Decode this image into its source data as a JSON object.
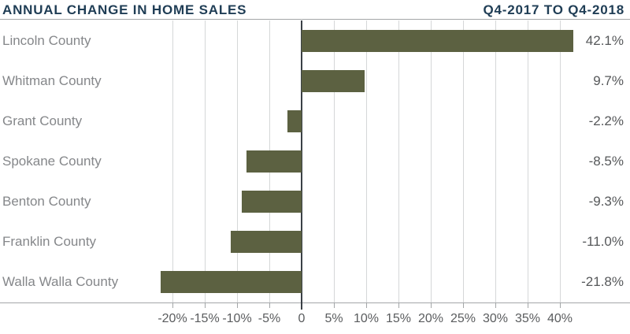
{
  "header": {
    "title": "ANNUAL CHANGE IN HOME SALES",
    "period": "Q4-2017 TO Q4-2018"
  },
  "colors": {
    "bar": "#5c6141",
    "heading": "#1f3d55",
    "county-label": "#85878a",
    "value-label": "#56585a",
    "tick-label": "#5a5c5e",
    "gridline": "#d5d7d8",
    "axis-line": "#a3a6a8",
    "zero-line": "#3a4046"
  },
  "chart_data": {
    "type": "bar",
    "orientation": "horizontal",
    "title": "ANNUAL CHANGE IN HOME SALES",
    "subtitle": "Q4-2017 TO Q4-2018",
    "categories": [
      "Lincoln County",
      "Whitman County",
      "Grant County",
      "Spokane County",
      "Benton County",
      "Franklin County",
      "Walla Walla County"
    ],
    "values": [
      42.1,
      9.7,
      -2.2,
      -8.5,
      -9.3,
      -11.0,
      -21.8
    ],
    "value_labels": [
      "42.1%",
      "9.7%",
      "-2.2%",
      "-8.5%",
      "-9.3%",
      "-11.0%",
      "-21.8%"
    ],
    "xlabel": "",
    "ylabel": "",
    "xlim": [
      -25,
      45
    ],
    "x_ticks": [
      -20,
      -15,
      -10,
      -5,
      0,
      5,
      10,
      15,
      20,
      25,
      30,
      35,
      40
    ],
    "x_tick_labels": [
      "-20%",
      "-15%",
      "-10%",
      "-5%",
      "0",
      "5%",
      "10%",
      "15%",
      "20%",
      "25%",
      "30%",
      "35%",
      "40%"
    ],
    "grid": "vertical-gridlines-on",
    "legend": "none",
    "bar_color": "#5c6141"
  }
}
